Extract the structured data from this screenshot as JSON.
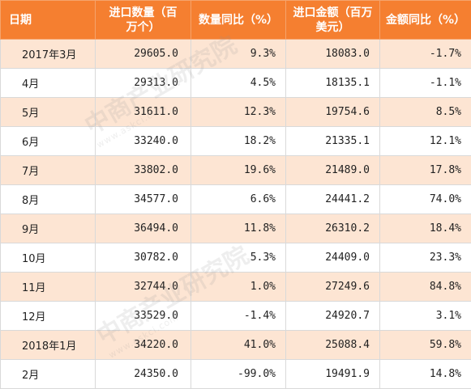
{
  "table": {
    "headers": [
      "日期",
      "进口数量（百万个）",
      "数量同比（%）",
      "进口金额（百万美元）",
      "金额同比（%）"
    ],
    "rows": [
      [
        "2017年3月",
        "29605.0",
        "9.3%",
        "18083.0",
        "-1.7%"
      ],
      [
        "4月",
        "29313.0",
        "4.5%",
        "18135.1",
        "-1.1%"
      ],
      [
        "5月",
        "31611.0",
        "12.3%",
        "19754.6",
        "8.5%"
      ],
      [
        "6月",
        "33240.0",
        "18.2%",
        "21335.1",
        "12.1%"
      ],
      [
        "7月",
        "33802.0",
        "19.6%",
        "21489.0",
        "17.8%"
      ],
      [
        "8月",
        "34577.0",
        "6.6%",
        "24441.2",
        "74.0%"
      ],
      [
        "9月",
        "36494.0",
        "11.8%",
        "26310.2",
        "18.4%"
      ],
      [
        "10月",
        "30782.0",
        "5.3%",
        "24409.0",
        "23.3%"
      ],
      [
        "11月",
        "32744.0",
        "1.0%",
        "27249.6",
        "84.8%"
      ],
      [
        "12月",
        "33529.0",
        "-1.4%",
        "24920.7",
        "3.1%"
      ],
      [
        "2018年1月",
        "34220.0",
        "41.0%",
        "25088.4",
        "59.8%"
      ],
      [
        "2月",
        "24350.0",
        "-99.0%",
        "19491.9",
        "14.8%"
      ]
    ]
  },
  "watermark": {
    "text": "中商产业研究院",
    "subtext": "www.askci.com"
  },
  "colors": {
    "header_bg": "#f57f30",
    "header_text": "#ffffff",
    "row_odd_bg": "#fde5d3",
    "row_even_bg": "#ffffff",
    "border": "#d9d9d9"
  }
}
